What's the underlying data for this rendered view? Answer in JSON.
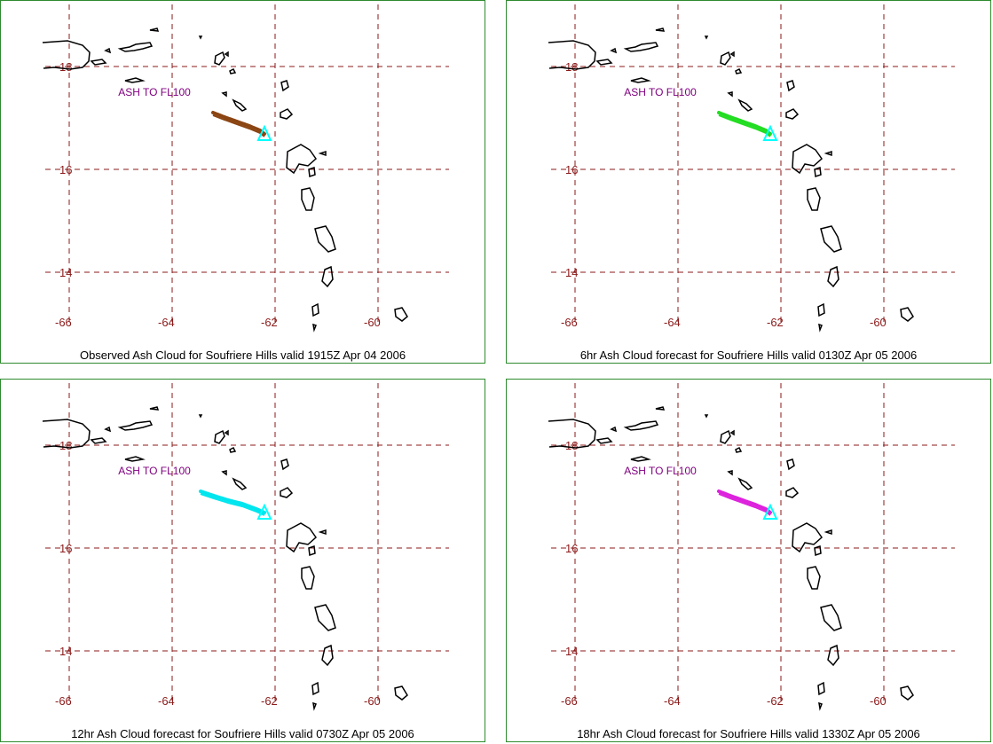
{
  "map": {
    "lat_labels": [
      "18",
      "16",
      "14"
    ],
    "lon_labels": [
      "-66",
      "-64",
      "-62",
      "-60"
    ],
    "annotation": "ASH TO FL100",
    "colors": {
      "grid": "#8b1a1a",
      "coast": "#000000",
      "volcano": "#00ffff",
      "annotation": "#800080",
      "frame": "#2e8b2e"
    }
  },
  "panels": [
    {
      "caption": "Observed Ash Cloud for Soufriere  Hills valid 1915Z Apr 04 2006",
      "ash_color": "#8b4513",
      "ash_extent": "short"
    },
    {
      "caption": "6hr Ash Cloud forecast for Soufriere  Hills valid 0130Z Apr 05 2006",
      "ash_color": "#22dd22",
      "ash_extent": "short"
    },
    {
      "caption": "12hr Ash Cloud forecast for Soufriere  Hills valid 0730Z Apr 05 2006",
      "ash_color": "#00e5ee",
      "ash_extent": "long"
    },
    {
      "caption": "18hr Ash Cloud forecast for Soufriere  Hills valid 1330Z Apr 05 2006",
      "ash_color": "#dd22dd",
      "ash_extent": "short"
    }
  ]
}
